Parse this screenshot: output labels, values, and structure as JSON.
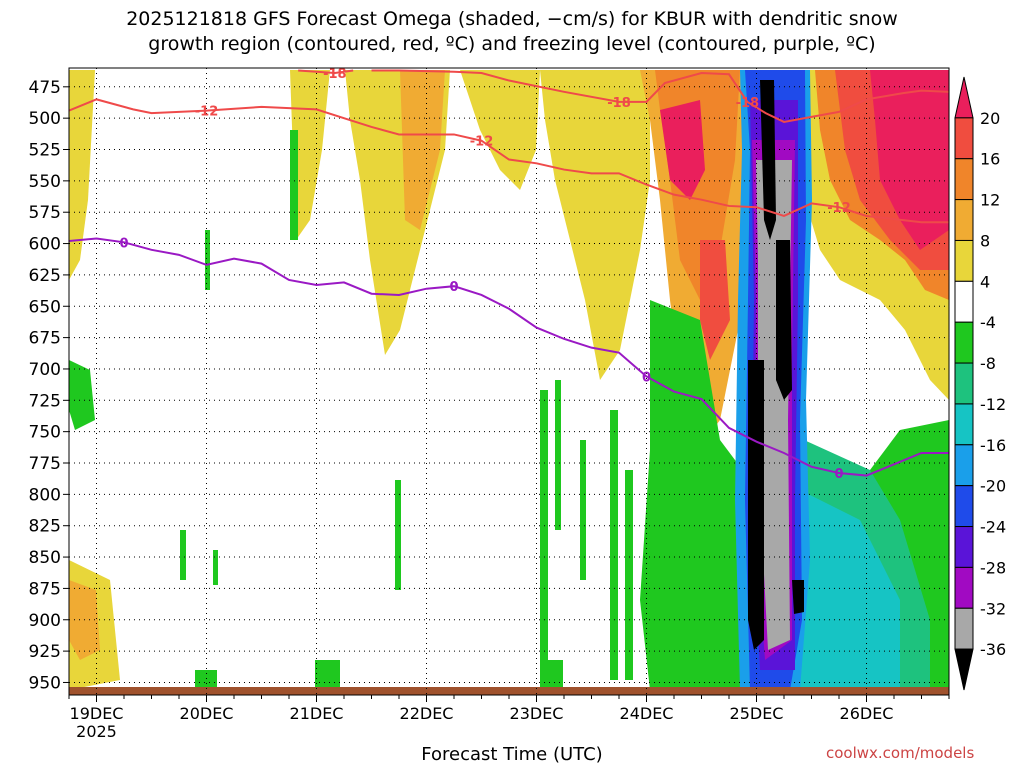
{
  "chart_data": {
    "type": "heatmap",
    "title_line1": "2025121818 GFS Forecast Omega (shaded, −cm/s) for KBUR with dendritic snow",
    "title_line2": "growth region (contoured, red, ºC) and freezing level (contoured, purple, ºC)",
    "xlabel": "Forecast Time (UTC)",
    "credit": "coolwx.com/models",
    "x_ticks": [
      "19DEC",
      "20DEC",
      "21DEC",
      "22DEC",
      "23DEC",
      "24DEC",
      "25DEC",
      "26DEC"
    ],
    "x_year": "2025",
    "x_range": [
      "2025-12-18T18",
      "2025-12-26T18"
    ],
    "y_ticks": [
      475,
      500,
      525,
      550,
      575,
      600,
      625,
      650,
      675,
      700,
      725,
      750,
      775,
      800,
      825,
      850,
      875,
      900,
      925,
      950
    ],
    "y_range_hPa": [
      460,
      960
    ],
    "y_inverted": true,
    "grid": "dotted",
    "colorbar": {
      "levels": [
        20,
        16,
        12,
        8,
        4,
        -4,
        -8,
        -12,
        -16,
        -20,
        -24,
        -28,
        -32,
        -36
      ],
      "colors": [
        "#ea1f5c",
        "#f04d3f",
        "#f0852a",
        "#f0ab33",
        "#e8d63a",
        "#ffffff",
        "#1fc81f",
        "#1ec27e",
        "#16c4c4",
        "#1a9fea",
        "#1f4bea",
        "#5a14d8",
        "#a10ac2",
        "#a8a8a8",
        "#000000"
      ]
    },
    "dgz_contours": [
      {
        "label": "-12",
        "color": "#ef4a4a",
        "points": [
          [
            "2025-12-18T18",
            494
          ],
          [
            "2025-12-19T00",
            485
          ],
          [
            "2025-12-19T08",
            493
          ],
          [
            "2025-12-19T12",
            496
          ],
          [
            "2025-12-20T00",
            494
          ],
          [
            "2025-12-20T12",
            491
          ],
          [
            "2025-12-21T00",
            493
          ],
          [
            "2025-12-21T06",
            500
          ],
          [
            "2025-12-21T12",
            507
          ],
          [
            "2025-12-21T18",
            513
          ],
          [
            "2025-12-22T06",
            513
          ],
          [
            "2025-12-22T12",
            518
          ],
          [
            "2025-12-22T18",
            533
          ],
          [
            "2025-12-23T00",
            536
          ],
          [
            "2025-12-23T06",
            541
          ],
          [
            "2025-12-23T12",
            544
          ],
          [
            "2025-12-23T18",
            544
          ],
          [
            "2025-12-24T00",
            553
          ],
          [
            "2025-12-24T06",
            561
          ],
          [
            "2025-12-24T12",
            565
          ],
          [
            "2025-12-24T18",
            570
          ],
          [
            "2025-12-25T00",
            571
          ],
          [
            "2025-12-25T06",
            578
          ],
          [
            "2025-12-25T12",
            568
          ],
          [
            "2025-12-25T18",
            571
          ],
          [
            "2025-12-26T00",
            578
          ],
          [
            "2025-12-26T12",
            583
          ],
          [
            "2025-12-26T18",
            583
          ]
        ]
      },
      {
        "label": "-18",
        "color": "#ef4a4a",
        "points": [
          [
            "2025-12-21T12",
            462
          ],
          [
            "2025-12-21T18",
            462
          ],
          [
            "2025-12-22T06",
            463
          ],
          [
            "2025-12-22T12",
            464
          ],
          [
            "2025-12-22T18",
            470
          ],
          [
            "2025-12-23T06",
            479
          ],
          [
            "2025-12-23T18",
            487
          ],
          [
            "2025-12-24T00",
            487
          ],
          [
            "2025-12-24T04",
            472
          ],
          [
            "2025-12-24T12",
            464
          ],
          [
            "2025-12-24T18",
            465
          ],
          [
            "2025-12-24T22",
            487
          ],
          [
            "2025-12-25T02",
            496
          ],
          [
            "2025-12-25T06",
            503
          ],
          [
            "2025-12-25T12",
            499
          ],
          [
            "2025-12-25T18",
            495
          ],
          [
            "2025-12-26T00",
            485
          ],
          [
            "2025-12-26T08",
            480
          ],
          [
            "2025-12-26T12",
            478
          ],
          [
            "2025-12-26T18",
            479
          ]
        ]
      },
      {
        "label": "-18",
        "color": "#ef4a4a",
        "points": [
          [
            "2025-12-20T20",
            462
          ],
          [
            "2025-12-21T04",
            464
          ],
          [
            "2025-12-21T08",
            462
          ]
        ]
      }
    ],
    "freezing_level": {
      "label": "0",
      "color": "#9a19c4",
      "points": [
        [
          "2025-12-18T18",
          598
        ],
        [
          "2025-12-19T00",
          596
        ],
        [
          "2025-12-19T06",
          599
        ],
        [
          "2025-12-19T12",
          605
        ],
        [
          "2025-12-19T18",
          609
        ],
        [
          "2025-12-20T00",
          617
        ],
        [
          "2025-12-20T06",
          612
        ],
        [
          "2025-12-20T12",
          616
        ],
        [
          "2025-12-20T18",
          629
        ],
        [
          "2025-12-21T00",
          633
        ],
        [
          "2025-12-21T06",
          631
        ],
        [
          "2025-12-21T12",
          640
        ],
        [
          "2025-12-21T18",
          641
        ],
        [
          "2025-12-22T00",
          636
        ],
        [
          "2025-12-22T06",
          634
        ],
        [
          "2025-12-22T12",
          641
        ],
        [
          "2025-12-22T18",
          652
        ],
        [
          "2025-12-23T00",
          667
        ],
        [
          "2025-12-23T06",
          676
        ],
        [
          "2025-12-23T12",
          683
        ],
        [
          "2025-12-23T18",
          687
        ],
        [
          "2025-12-24T00",
          706
        ],
        [
          "2025-12-24T06",
          718
        ],
        [
          "2025-12-24T12",
          724
        ],
        [
          "2025-12-24T18",
          747
        ],
        [
          "2025-12-25T00",
          758
        ],
        [
          "2025-12-25T06",
          767
        ],
        [
          "2025-12-25T12",
          778
        ],
        [
          "2025-12-25T18",
          783
        ],
        [
          "2025-12-26T00",
          785
        ],
        [
          "2025-12-26T06",
          776
        ],
        [
          "2025-12-26T12",
          767
        ],
        [
          "2025-12-26T18",
          767
        ]
      ]
    }
  }
}
